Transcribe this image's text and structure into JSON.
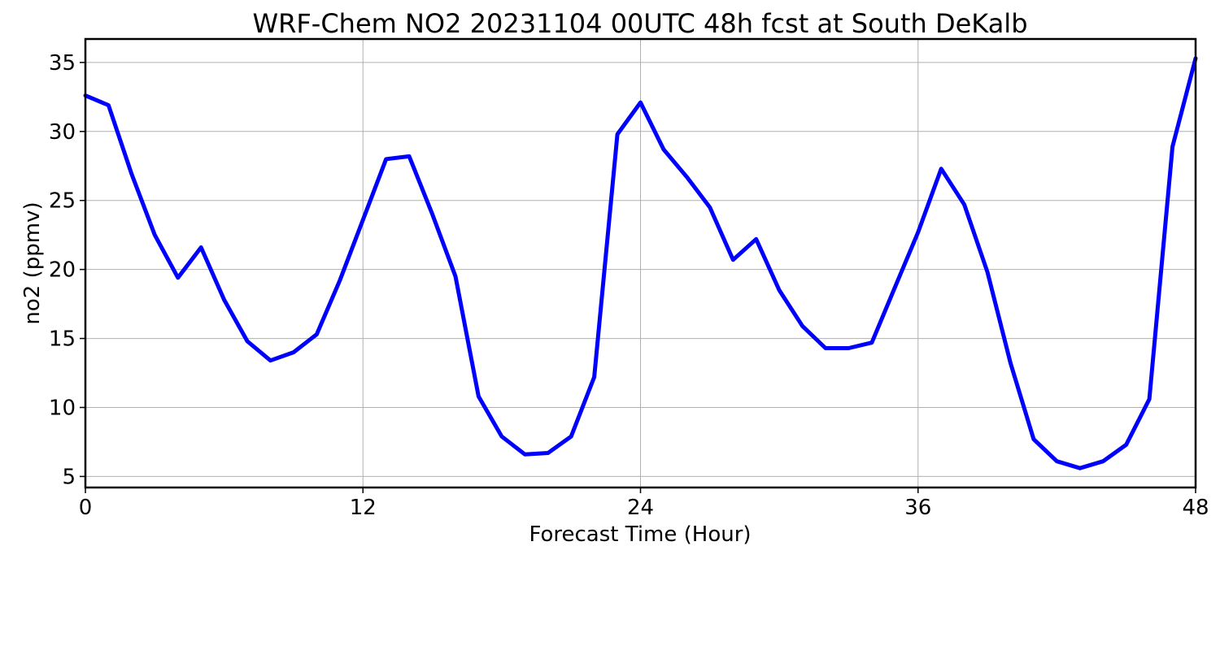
{
  "chart_data": {
    "type": "line",
    "title": "WRF-Chem NO2  20231104 00UTC 48h fcst at South DeKalb",
    "xlabel": "Forecast Time (Hour)",
    "ylabel": "no2  (ppmv)",
    "xlim": [
      0,
      48
    ],
    "ylim": [
      4.2,
      36.7
    ],
    "xticks": [
      0,
      12,
      24,
      36,
      48
    ],
    "yticks": [
      5,
      10,
      15,
      20,
      25,
      30,
      35
    ],
    "grid": true,
    "series": [
      {
        "color": "#0000ff",
        "x": [
          0,
          1,
          2,
          3,
          4,
          5,
          6,
          7,
          8,
          9,
          10,
          11,
          12,
          13,
          14,
          15,
          16,
          17,
          18,
          19,
          20,
          21,
          22,
          23,
          24,
          25,
          26,
          27,
          28,
          29,
          30,
          31,
          32,
          33,
          34,
          35,
          36,
          37,
          38,
          39,
          40,
          41,
          42,
          43,
          44,
          45,
          46,
          47,
          48
        ],
        "values": [
          32.6,
          31.9,
          26.9,
          22.5,
          19.4,
          21.6,
          17.8,
          14.8,
          13.4,
          14.0,
          15.3,
          19.2,
          23.6,
          28.0,
          28.2,
          24.0,
          19.5,
          10.8,
          7.9,
          6.6,
          6.7,
          7.9,
          12.2,
          29.8,
          32.1,
          28.7,
          26.7,
          24.5,
          20.7,
          22.2,
          18.5,
          15.9,
          14.3,
          14.3,
          14.7,
          18.7,
          22.7,
          27.3,
          24.7,
          19.8,
          13.2,
          7.7,
          6.1,
          5.6,
          6.1,
          7.3,
          10.6,
          28.9,
          35.3
        ]
      }
    ]
  }
}
